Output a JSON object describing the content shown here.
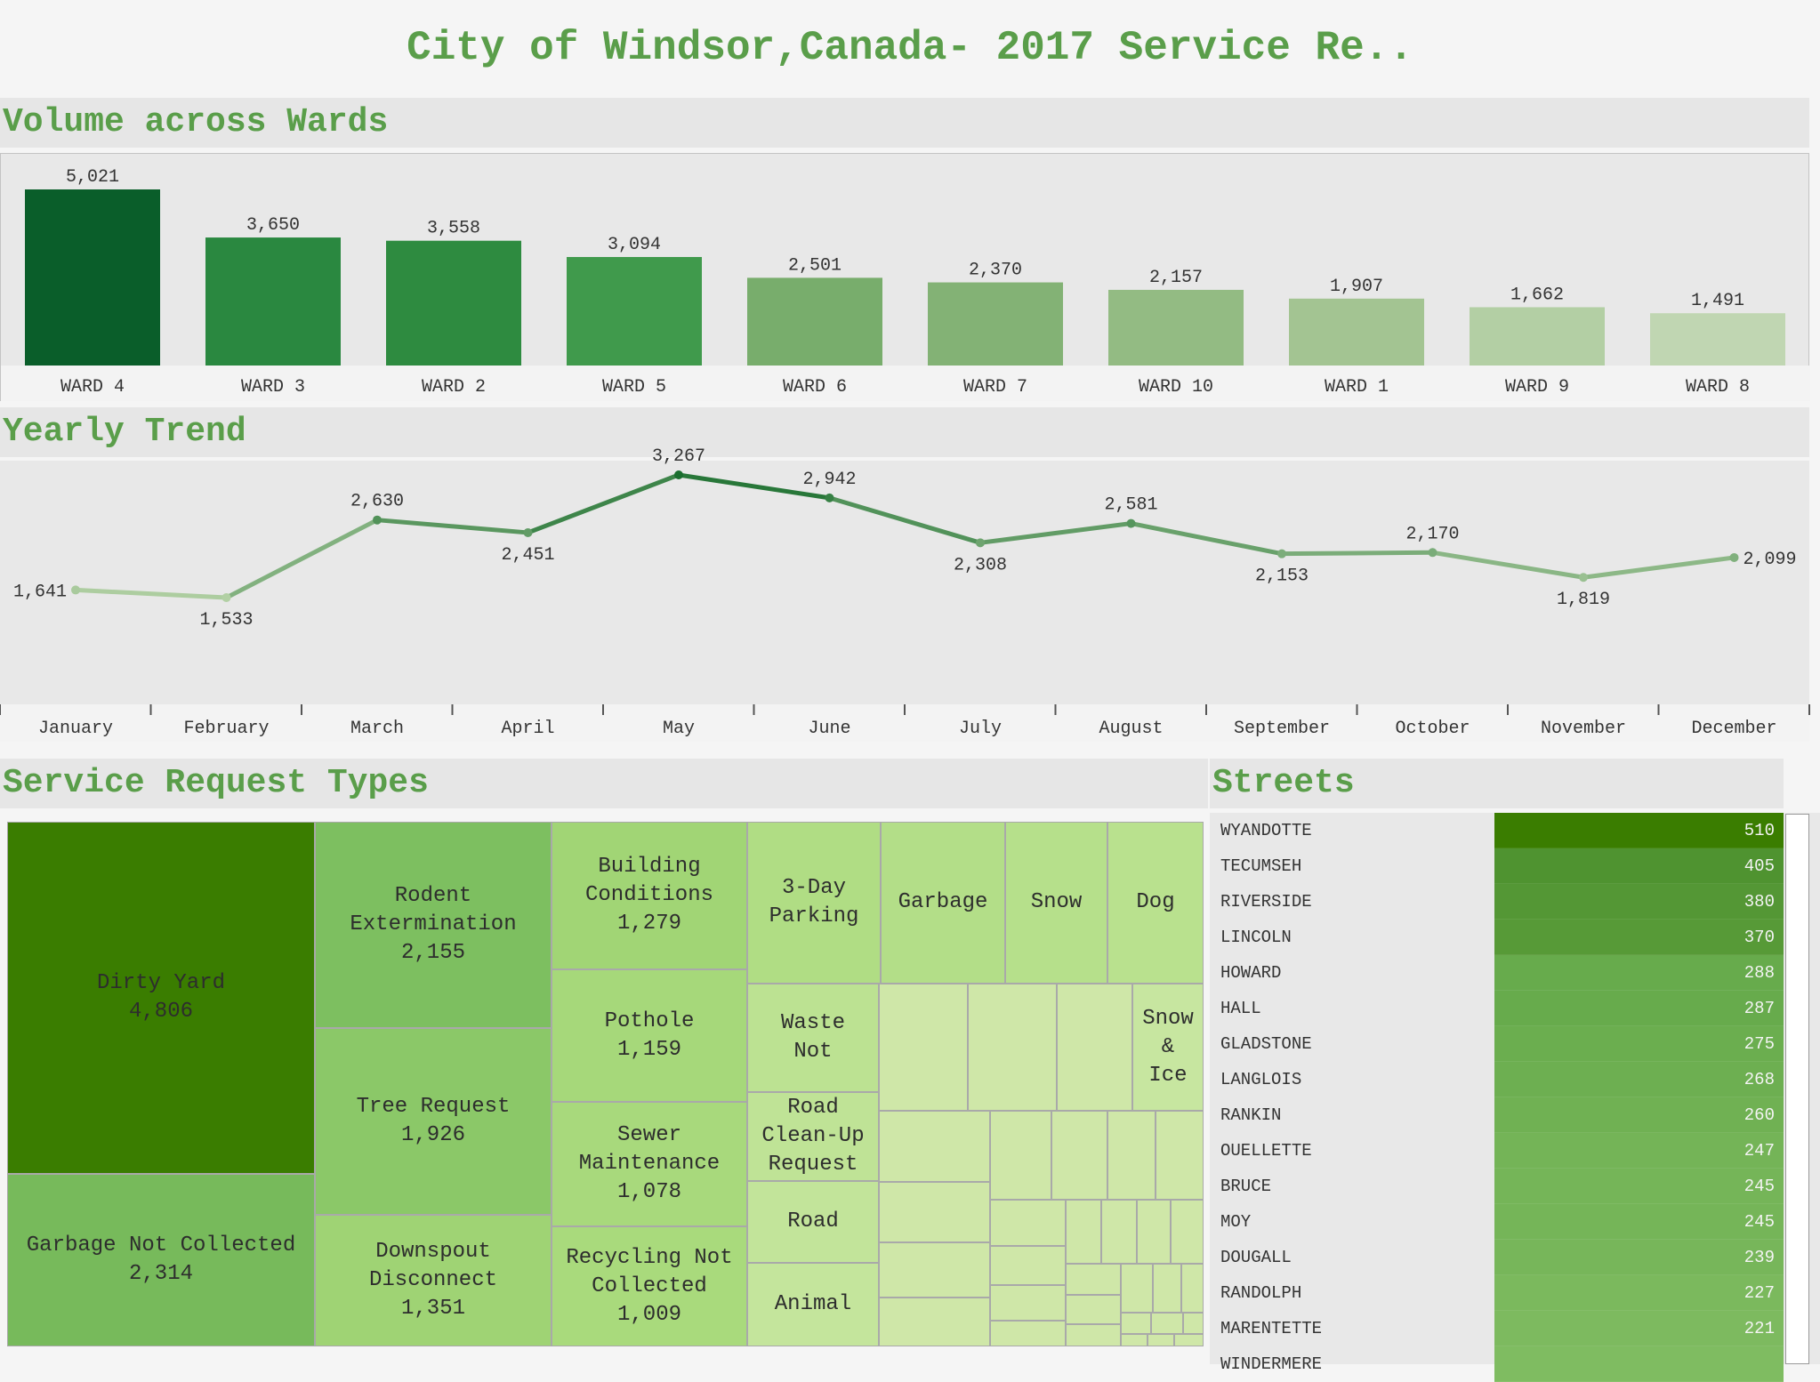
{
  "title": "City of Windsor,Canada- 2017 Service Re..",
  "sections": {
    "wards": "Volume across Wards",
    "trend": "Yearly Trend",
    "types": "Service Request Types",
    "streets": "Streets"
  },
  "chart_data": [
    {
      "type": "bar",
      "categories": [
        "WARD 4",
        "WARD 3",
        "WARD 2",
        "WARD 5",
        "WARD 6",
        "WARD 7",
        "WARD 10",
        "WARD 1",
        "WARD 9",
        "WARD 8"
      ],
      "values": [
        5021,
        3650,
        3558,
        3094,
        2501,
        2370,
        2157,
        1907,
        1662,
        1491
      ],
      "value_labels": [
        "5,021",
        "3,650",
        "3,558",
        "3,094",
        "2,501",
        "2,370",
        "2,157",
        "1,907",
        "1,662",
        "1,491"
      ],
      "colors": [
        "#0a5e2a",
        "#2a8840",
        "#2e8b40",
        "#409a4c",
        "#78ad6c",
        "#83b275",
        "#93bb83",
        "#a3c492",
        "#b3cfa4",
        "#c0d6b2"
      ],
      "ylim": [
        0,
        5021
      ]
    },
    {
      "type": "line",
      "categories": [
        "January",
        "February",
        "March",
        "April",
        "May",
        "June",
        "July",
        "August",
        "September",
        "October",
        "November",
        "December"
      ],
      "values": [
        1641,
        1533,
        2630,
        2451,
        3267,
        2942,
        2308,
        2581,
        2153,
        2170,
        1819,
        2099
      ],
      "value_labels": [
        "1,641",
        "1,533",
        "2,630",
        "2,451",
        "3,267",
        "2,942",
        "2,308",
        "2,581",
        "2,153",
        "2,170",
        "1,819",
        "2,099"
      ],
      "label_positions": [
        "left",
        "below",
        "above",
        "below",
        "above",
        "above",
        "below",
        "above",
        "below",
        "above",
        "below",
        "right"
      ]
    },
    {
      "type": "treemap",
      "items": [
        {
          "label": "Dirty Yard\n4,806",
          "value": 4806,
          "color": "#3a7d00"
        },
        {
          "label": "Garbage Not Collected\n2,314",
          "value": 2314,
          "color": "#77ba5b"
        },
        {
          "label": "Rodent\nExtermination\n2,155",
          "value": 2155,
          "color": "#7dbf60"
        },
        {
          "label": "Tree Request\n1,926",
          "value": 1926,
          "color": "#8bc868"
        },
        {
          "label": "Downspout\nDisconnect\n1,351",
          "value": 1351,
          "color": "#9fd374"
        },
        {
          "label": "Building\nConditions\n1,279",
          "value": 1279,
          "color": "#a1d575"
        },
        {
          "label": "Pothole\n1,159",
          "value": 1159,
          "color": "#a6d87a"
        },
        {
          "label": "Sewer\nMaintenance\n1,078",
          "value": 1078,
          "color": "#a8d97c"
        },
        {
          "label": "Recycling Not\nCollected\n1,009",
          "value": 1009,
          "color": "#a9da7c"
        },
        {
          "label": "3-Day\nParking",
          "value": null,
          "color": "#b0dd84"
        },
        {
          "label": "Garbage",
          "value": null,
          "color": "#b3de88"
        },
        {
          "label": "Snow",
          "value": null,
          "color": "#b6e08b"
        },
        {
          "label": "Dog",
          "value": null,
          "color": "#b9e18e"
        },
        {
          "label": "Waste\nNot",
          "value": null,
          "color": "#bce292"
        },
        {
          "label": "Road\nClean-Up\nRequest",
          "value": null,
          "color": "#bfe396"
        },
        {
          "label": "Road",
          "value": null,
          "color": "#c2e49a"
        },
        {
          "label": "Animal",
          "value": null,
          "color": "#c4e59c"
        },
        {
          "label": "Snow\n&\nIce",
          "value": null,
          "color": "#c7e6a0"
        }
      ]
    },
    {
      "type": "bar",
      "orientation": "horizontal",
      "categories": [
        "WYANDOTTE",
        "TECUMSEH",
        "RIVERSIDE",
        "LINCOLN",
        "HOWARD",
        "HALL",
        "GLADSTONE",
        "LANGLOIS",
        "RANKIN",
        "OUELLETTE",
        "BRUCE",
        "MOY",
        "DOUGALL",
        "RANDOLPH",
        "MARENTETTE",
        "WINDERMERE"
      ],
      "values": [
        510,
        405,
        380,
        370,
        288,
        287,
        275,
        268,
        260,
        247,
        245,
        245,
        239,
        227,
        221,
        null
      ],
      "value_labels": [
        "510",
        "405",
        "380",
        "370",
        "288",
        "287",
        "275",
        "268",
        "260",
        "247",
        "245",
        "245",
        "239",
        "227",
        "221",
        ""
      ],
      "colors": [
        "#3a7d00",
        "#4f9330",
        "#549735",
        "#579a37",
        "#67ab4c",
        "#67ab4c",
        "#6bae4f",
        "#6daf51",
        "#70b153",
        "#74b457",
        "#75b558",
        "#75b558",
        "#77b65a",
        "#7bb95d",
        "#7dba5f",
        "#7fbc61"
      ]
    }
  ]
}
